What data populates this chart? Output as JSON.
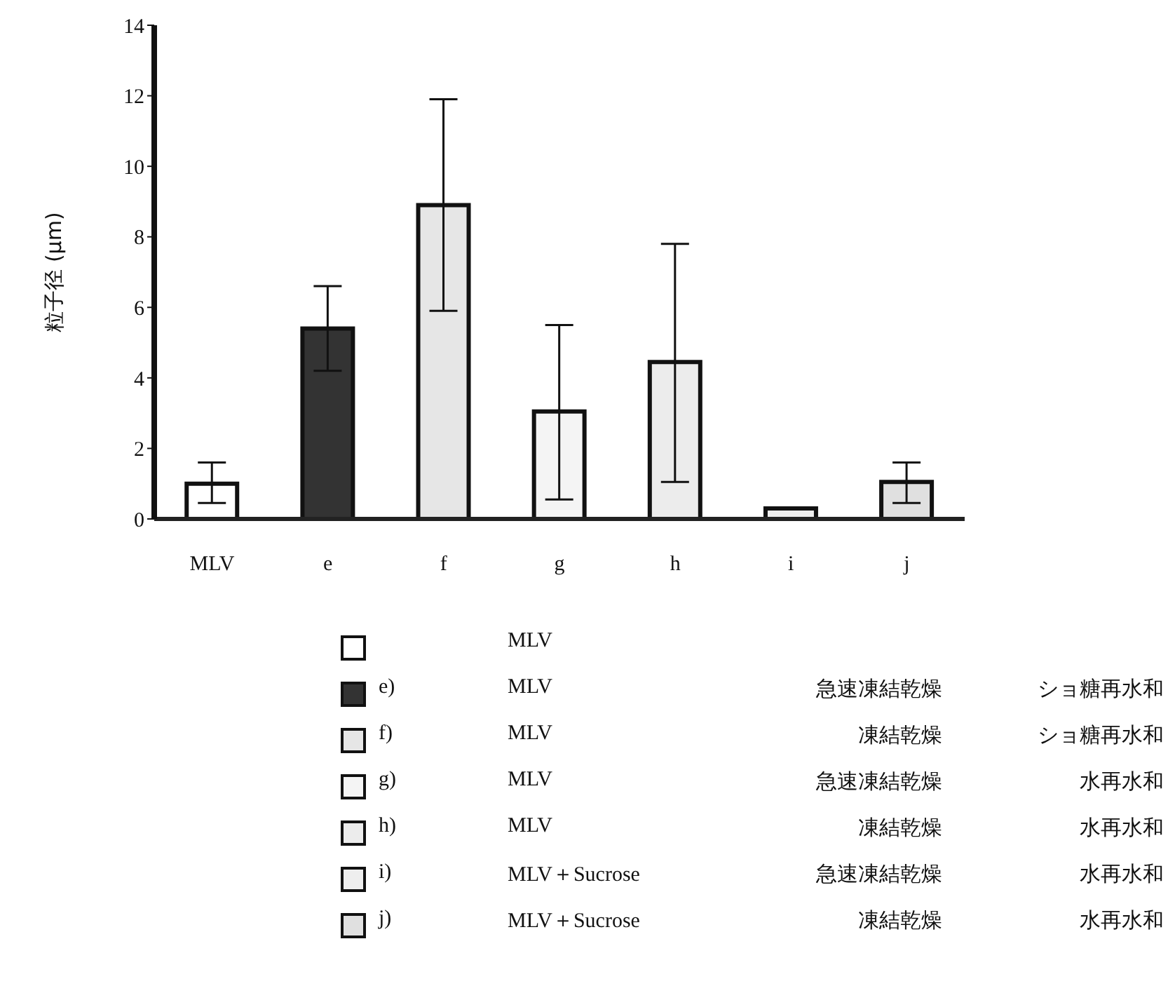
{
  "chart_data": {
    "type": "bar",
    "ylabel": "粒子径 (μm)",
    "categories": [
      "MLV",
      "e",
      "f",
      "g",
      "h",
      "i",
      "j"
    ],
    "values": [
      1.0,
      5.4,
      8.9,
      3.05,
      4.45,
      0.3,
      1.05
    ],
    "errors": [
      [
        0.45,
        1.6
      ],
      1.2,
      [
        5.9,
        11.9
      ],
      [
        0.55,
        5.5
      ],
      [
        1.05,
        7.8
      ],
      null,
      [
        0.45,
        1.6
      ]
    ],
    "colors": [
      "#ffffff",
      "#333333",
      "#e6e6e6",
      "#f4f4f4",
      "#ececec",
      "#eeeeee",
      "#e0e0e0"
    ],
    "ylim": [
      0,
      14
    ],
    "yticks": [
      0,
      2,
      4,
      6,
      8,
      10,
      12,
      14
    ],
    "grid": false,
    "legend": false,
    "annotations": [
      "MLV",
      "e) MLV 急速凍結乾燥 ショ糖再水和",
      "f) MLV 凍結乾燥 ショ糖再水和",
      "g) MLV 急速凍結乾燥 水再水和",
      "h) MLV 凍結乾燥 水再水和",
      "i) MLV＋Sucrose 急速凍結乾燥 水再水和",
      "j) MLV＋Sucrose 凍結乾燥 水再水和"
    ]
  }
}
